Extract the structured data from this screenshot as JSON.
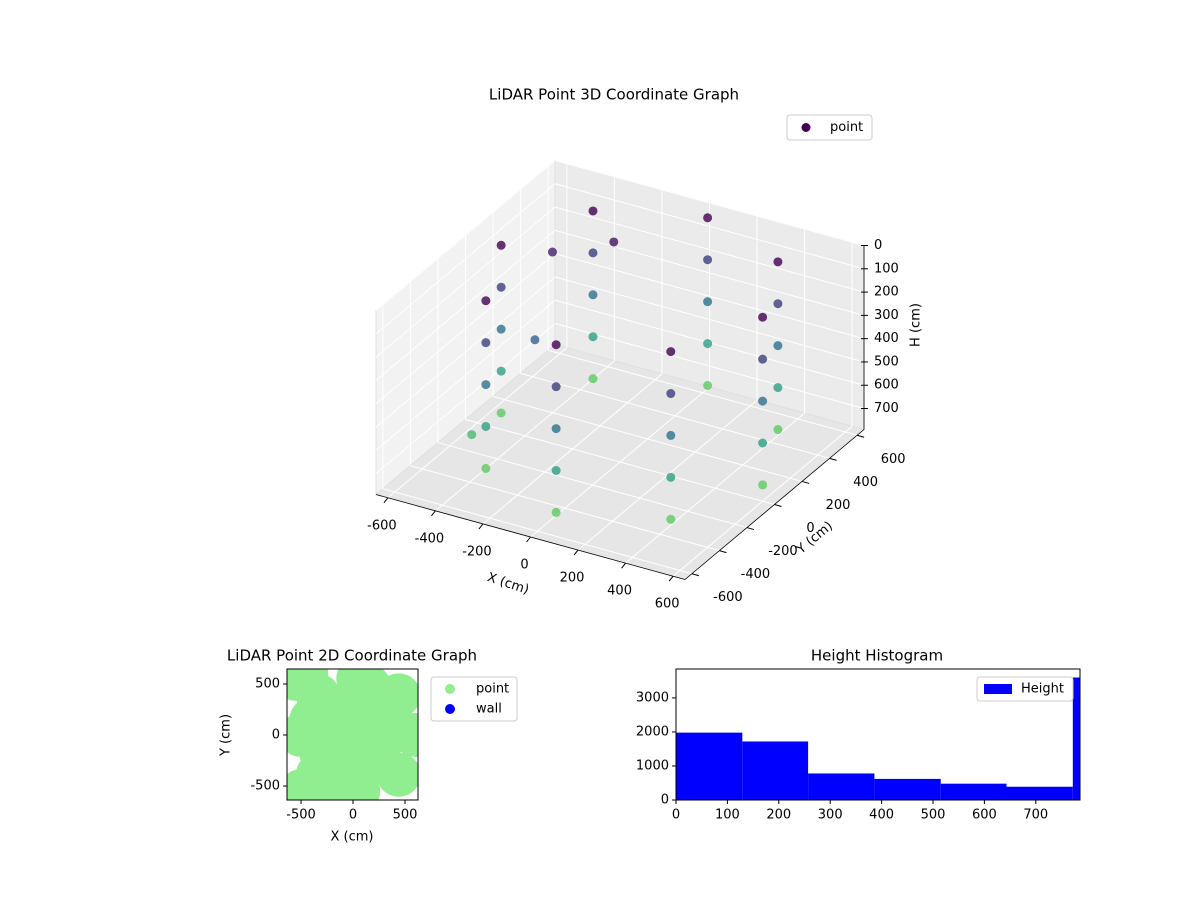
{
  "chart_data": [
    {
      "type": "scatter3d",
      "title": "LiDAR Point 3D Coordinate Graph",
      "xlabel": "X (cm)",
      "ylabel": "Y (cm)",
      "zlabel": "H (cm)",
      "colormap": "viridis",
      "legend": "upper right",
      "series_name": "point",
      "legend_color": "#440154",
      "xlim": [
        -650,
        650
      ],
      "ylim": [
        -650,
        650
      ],
      "zlim": [
        790,
        0
      ],
      "xticks": [
        -600,
        -400,
        -200,
        0,
        200,
        400,
        600
      ],
      "yticks": [
        -600,
        -400,
        -200,
        0,
        200,
        400,
        600
      ],
      "zticks": [
        0,
        100,
        200,
        300,
        400,
        500,
        600,
        700
      ],
      "x": [
        600,
        439,
        50,
        -339,
        -500,
        -339,
        50,
        439,
        600,
        439,
        50,
        -339,
        -500,
        -339,
        50,
        439,
        600,
        439,
        50,
        -339,
        -500,
        -339,
        50,
        439,
        600,
        439,
        50,
        -339,
        -500,
        -339,
        50,
        439,
        600,
        439,
        50,
        -339,
        -500,
        -339,
        50,
        439,
        -400,
        -300,
        -450,
        -200
      ],
      "y": [
        0,
        389,
        550,
        389,
        0,
        -389,
        -550,
        -389,
        0,
        389,
        550,
        389,
        0,
        -389,
        -550,
        -389,
        0,
        389,
        550,
        389,
        0,
        -389,
        -550,
        -389,
        0,
        389,
        550,
        389,
        0,
        -389,
        -550,
        -389,
        0,
        389,
        550,
        389,
        0,
        -389,
        -550,
        -389,
        200,
        -100,
        -300,
        300
      ],
      "h": [
        0,
        0,
        0,
        0,
        0,
        0,
        0,
        0,
        180,
        180,
        180,
        180,
        180,
        180,
        180,
        180,
        360,
        360,
        360,
        360,
        360,
        360,
        360,
        360,
        540,
        540,
        540,
        540,
        540,
        540,
        540,
        540,
        720,
        720,
        720,
        720,
        720,
        720,
        720,
        720,
        100,
        300,
        650,
        50
      ]
    },
    {
      "type": "scatter",
      "title": "LiDAR Point 2D Coordinate Graph",
      "xlabel": "X (cm)",
      "ylabel": "Y (cm)",
      "legend": "outside right",
      "xlim": [
        -635,
        625
      ],
      "ylim": [
        -637,
        647
      ],
      "xticks": [
        -500,
        0,
        500
      ],
      "yticks": [
        -500,
        0,
        500
      ],
      "series": [
        {
          "name": "point",
          "color": "#90ee90",
          "x": [
            600,
            439,
            50,
            -339,
            -500,
            -339,
            50,
            439,
            300,
            200,
            -100,
            -200,
            100,
            -50,
            250,
            300,
            -150,
            150,
            -550,
            -450,
            -500,
            -400,
            -300,
            0,
            100
          ],
          "y": [
            0,
            389,
            550,
            389,
            0,
            -389,
            -550,
            -389,
            0,
            300,
            250,
            -250,
            -300,
            0,
            -150,
            200,
            -500,
            480,
            550,
            600,
            -550,
            150,
            -200,
            100,
            -100
          ]
        },
        {
          "name": "wall",
          "color": "#0000ff",
          "x": [],
          "y": []
        }
      ]
    },
    {
      "type": "histogram",
      "title": "Height Histogram",
      "legend": "upper right",
      "series_name": "Height",
      "color": "#0000ff",
      "bins": [
        0,
        129,
        257,
        386,
        515,
        643,
        772,
        786
      ],
      "counts": [
        1980,
        1720,
        780,
        620,
        480,
        390,
        3600
      ],
      "xlim": [
        0,
        786
      ],
      "ylim": [
        0,
        3850
      ],
      "xticks": [
        0,
        100,
        200,
        300,
        400,
        500,
        600,
        700
      ],
      "yticks": [
        0,
        1000,
        2000,
        3000
      ]
    }
  ]
}
